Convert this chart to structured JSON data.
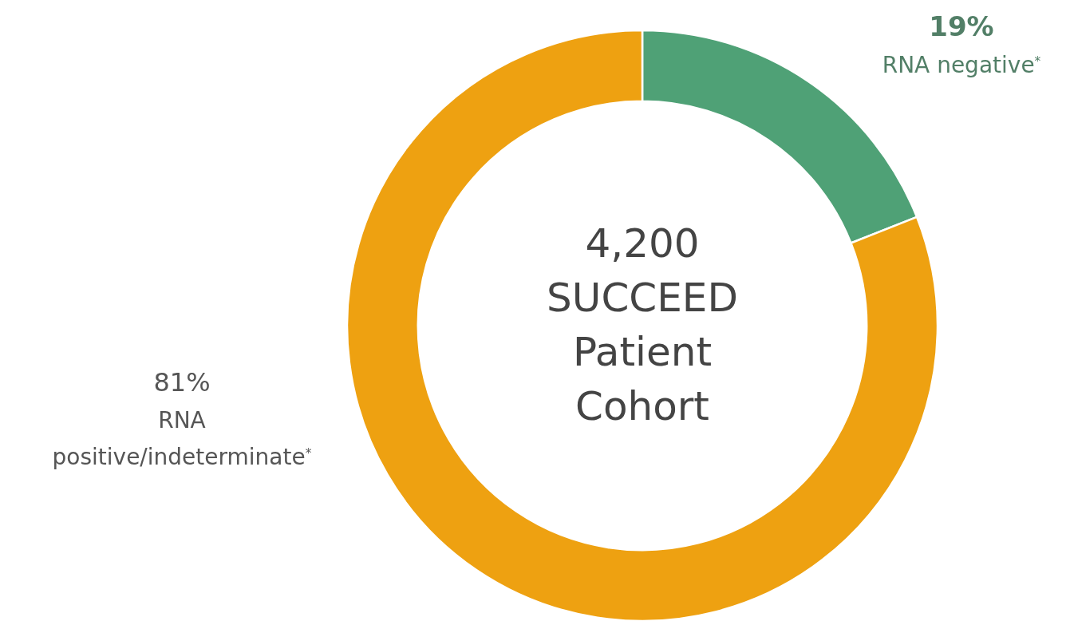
{
  "chart_data": {
    "type": "donut",
    "categories": [
      "RNA negative$^{*}$",
      "RNA positive/indeterminate$^{*}$"
    ],
    "values": [
      19,
      81
    ],
    "value_labels": [
      "19%",
      "81%"
    ],
    "colors": [
      "#4fa176",
      "#eea111"
    ],
    "annotations": [
      "4,200 SUCCEED Patient Cohort"
    ]
  }
}
